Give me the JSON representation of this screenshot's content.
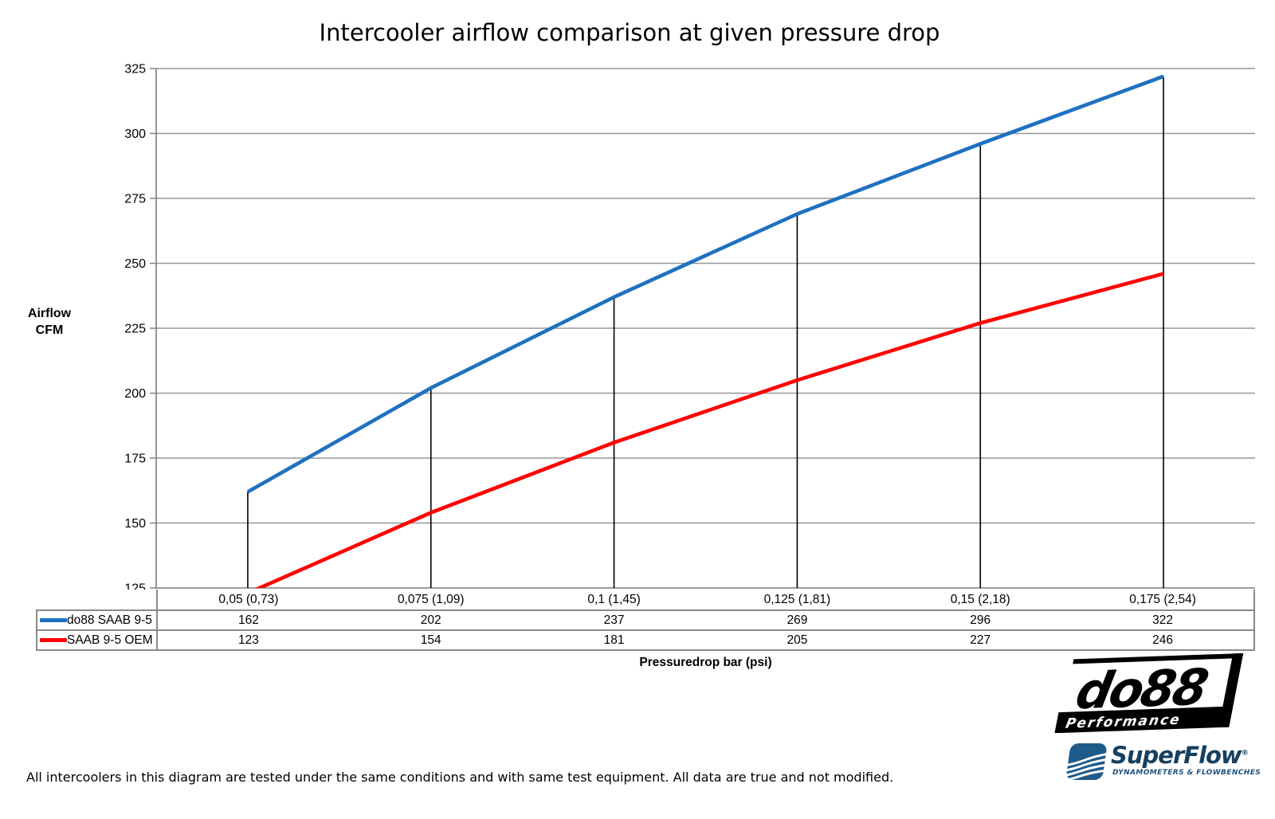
{
  "title": "Intercooler airflow comparison at given pressure drop",
  "chart_data": {
    "type": "line",
    "title": "Intercooler airflow comparison at given pressure drop",
    "categories": [
      "0,05 (0,73)",
      "0,075 (1,09)",
      "0,1 (1,45)",
      "0,125 (1,81)",
      "0,15 (2,18)",
      "0,175 (2,54)"
    ],
    "series": [
      {
        "name": "do88 SAAB 9-5",
        "color": "#1f70c1",
        "values": [
          162,
          202,
          237,
          269,
          296,
          322
        ]
      },
      {
        "name": "SAAB 9-5 OEM",
        "color": "#ff0000",
        "values": [
          123,
          154,
          181,
          205,
          227,
          246
        ]
      }
    ],
    "xlabel": "Pressuredrop bar (psi)",
    "ylabel_lines": [
      "Airflow",
      "CFM"
    ],
    "ylim": [
      125,
      325
    ],
    "ytick_step": 25,
    "grid": true,
    "droplines_to_first_series": true,
    "legend_position": "data-table-left",
    "colors": {
      "gridline": "#969696",
      "axis": "#7c7c7c",
      "dropline": "#000000",
      "table_border": "#8a8a8a",
      "text": "#000000"
    }
  },
  "footnote": "All intercoolers in this diagram are tested under the same conditions and with same test equipment. All data are true and not modified.",
  "logos": {
    "do88": {
      "text": "do88",
      "subtext": "Performance"
    },
    "superflow": {
      "text": "SuperFlow",
      "mark": "®",
      "subtext": "DYNAMOMETERS & FLOWBENCHES"
    }
  }
}
